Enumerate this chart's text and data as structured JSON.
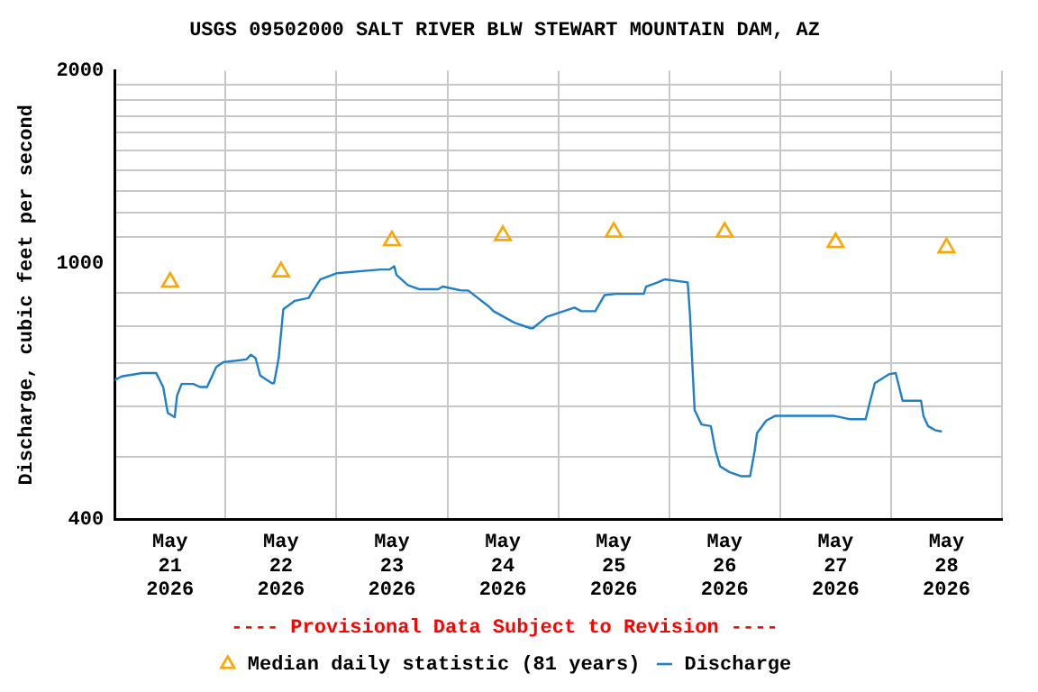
{
  "chart_data": {
    "type": "line",
    "title": "USGS 09502000 SALT RIVER BLW STEWART MOUNTAIN DAM, AZ",
    "ylabel": "Discharge, cubic feet per second",
    "annotations": [
      "---- Provisional Data Subject to Revision ----"
    ],
    "log": "y",
    "grid": true,
    "legend": "bottom",
    "xlim": [
      "2026-05-21T00:00",
      "2026-05-29T00:00"
    ],
    "xticks": [
      {
        "value": "2026-05-21T00:00",
        "label": null
      },
      {
        "value": "2026-05-21T12:00",
        "label": "May 21 2026"
      },
      {
        "value": "2026-05-22T00:00",
        "label": null
      },
      {
        "value": "2026-05-22T12:00",
        "label": "May 22 2026"
      },
      {
        "value": "2026-05-23T00:00",
        "label": null
      },
      {
        "value": "2026-05-23T12:00",
        "label": "May 23 2026"
      },
      {
        "value": "2026-05-24T00:00",
        "label": null
      },
      {
        "value": "2026-05-24T12:00",
        "label": "May 24 2026"
      },
      {
        "value": "2026-05-25T00:00",
        "label": null
      },
      {
        "value": "2026-05-25T12:00",
        "label": "May 25 2026"
      },
      {
        "value": "2026-05-26T00:00",
        "label": null
      },
      {
        "value": "2026-05-26T12:00",
        "label": "May 26 2026"
      },
      {
        "value": "2026-05-27T00:00",
        "label": null
      },
      {
        "value": "2026-05-27T12:00",
        "label": "May 27 2026"
      },
      {
        "value": "2026-05-28T00:00",
        "label": null
      },
      {
        "value": "2026-05-28T12:00",
        "label": "May 28 2026"
      },
      {
        "value": "2026-05-29T00:00",
        "label": null
      }
    ],
    "ylim": [
      400,
      2000
    ],
    "yticks": [
      400,
      {
        "value": 500,
        "label": null
      },
      {
        "value": 600,
        "label": null
      },
      {
        "value": 700,
        "label": null
      },
      {
        "value": 800,
        "label": null
      },
      {
        "value": 900,
        "label": null
      },
      1000,
      {
        "value": 1100,
        "label": null
      },
      {
        "value": 1200,
        "label": null
      },
      {
        "value": 1300,
        "label": null
      },
      {
        "value": 1400,
        "label": null
      },
      {
        "value": 1500,
        "label": null
      },
      {
        "value": 1600,
        "label": null
      },
      {
        "value": 1700,
        "label": null
      },
      {
        "value": 1800,
        "label": null
      },
      {
        "value": 1900,
        "label": null
      },
      2000
    ],
    "series": [
      {
        "name": "Median daily statistic (81 years)",
        "type": "scatter",
        "marker": "triangle",
        "color": "#ffa500",
        "x": [
          "2026-05-21T12:00",
          "2026-05-22T12:00",
          "2026-05-23T12:00",
          "2026-05-24T12:00",
          "2026-05-25T12:00",
          "2026-05-26T12:00",
          "2026-05-27T12:00",
          "2026-05-28T12:00"
        ],
        "values": [
          937,
          972,
          1087,
          1107,
          1121,
          1121,
          1080,
          1060
        ]
      },
      {
        "name": "Discharge",
        "marker": "none",
        "line_style": "solid",
        "color": "#1f7fc8",
        "x": [
          "2026-05-21T00:00",
          "2026-05-21T01:30",
          "2026-05-21T06:00",
          "2026-05-21T09:00",
          "2026-05-21T10:30",
          "2026-05-21T11:30",
          "2026-05-21T13:00",
          "2026-05-21T13:30",
          "2026-05-21T14:30",
          "2026-05-21T17:00",
          "2026-05-21T18:30",
          "2026-05-21T20:00",
          "2026-05-21T22:00",
          "2026-05-21T23:30",
          "2026-05-22T04:30",
          "2026-05-22T05:30",
          "2026-05-22T06:30",
          "2026-05-22T07:30",
          "2026-05-22T10:00",
          "2026-05-22T10:30",
          "2026-05-22T11:30",
          "2026-05-22T12:30",
          "2026-05-22T15:00",
          "2026-05-22T18:00",
          "2026-05-22T18:30",
          "2026-05-22T20:30",
          "2026-05-23T00:00",
          "2026-05-23T09:30",
          "2026-05-23T11:30",
          "2026-05-23T12:30",
          "2026-05-23T13:00",
          "2026-05-23T15:30",
          "2026-05-23T18:00",
          "2026-05-23T22:00",
          "2026-05-23T23:00",
          "2026-05-24T03:00",
          "2026-05-24T04:30",
          "2026-05-24T09:00",
          "2026-05-24T10:00",
          "2026-05-24T14:30",
          "2026-05-24T18:00",
          "2026-05-24T18:30",
          "2026-05-24T21:30",
          "2026-05-25T03:30",
          "2026-05-25T05:00",
          "2026-05-25T08:00",
          "2026-05-25T10:00",
          "2026-05-25T12:30",
          "2026-05-25T18:30",
          "2026-05-25T19:00",
          "2026-05-25T21:30",
          "2026-05-25T23:00",
          "2026-05-26T04:00",
          "2026-05-26T04:30",
          "2026-05-26T05:00",
          "2026-05-26T05:30",
          "2026-05-26T07:00",
          "2026-05-26T09:00",
          "2026-05-26T10:00",
          "2026-05-26T11:00",
          "2026-05-26T13:00",
          "2026-05-26T15:30",
          "2026-05-26T17:30",
          "2026-05-26T18:30",
          "2026-05-26T19:00",
          "2026-05-26T21:00",
          "2026-05-26T23:00",
          "2026-05-27T04:00",
          "2026-05-27T11:30",
          "2026-05-27T15:00",
          "2026-05-27T18:30",
          "2026-05-27T19:30",
          "2026-05-27T20:30",
          "2026-05-27T23:30",
          "2026-05-28T01:00",
          "2026-05-28T02:30",
          "2026-05-28T06:30",
          "2026-05-28T07:00",
          "2026-05-28T08:00",
          "2026-05-28T09:30",
          "2026-05-28T11:00"
        ],
        "values": [
          659,
          668,
          676,
          676,
          643,
          586,
          577,
          623,
          650,
          650,
          643,
          643,
          691,
          703,
          710,
          722,
          713,
          670,
          652,
          652,
          713,
          850,
          876,
          885,
          898,
          946,
          967,
          980,
          980,
          992,
          961,
          926,
          913,
          913,
          922,
          909,
          909,
          858,
          844,
          810,
          794,
          794,
          827,
          855,
          844,
          844,
          894,
          898,
          898,
          922,
          936,
          946,
          936,
          832,
          698,
          592,
          562,
          559,
          512,
          484,
          474,
          467,
          467,
          512,
          545,
          570,
          580,
          580,
          580,
          573,
          573,
          612,
          652,
          673,
          676,
          612,
          612,
          580,
          559,
          551,
          548
        ]
      }
    ]
  }
}
